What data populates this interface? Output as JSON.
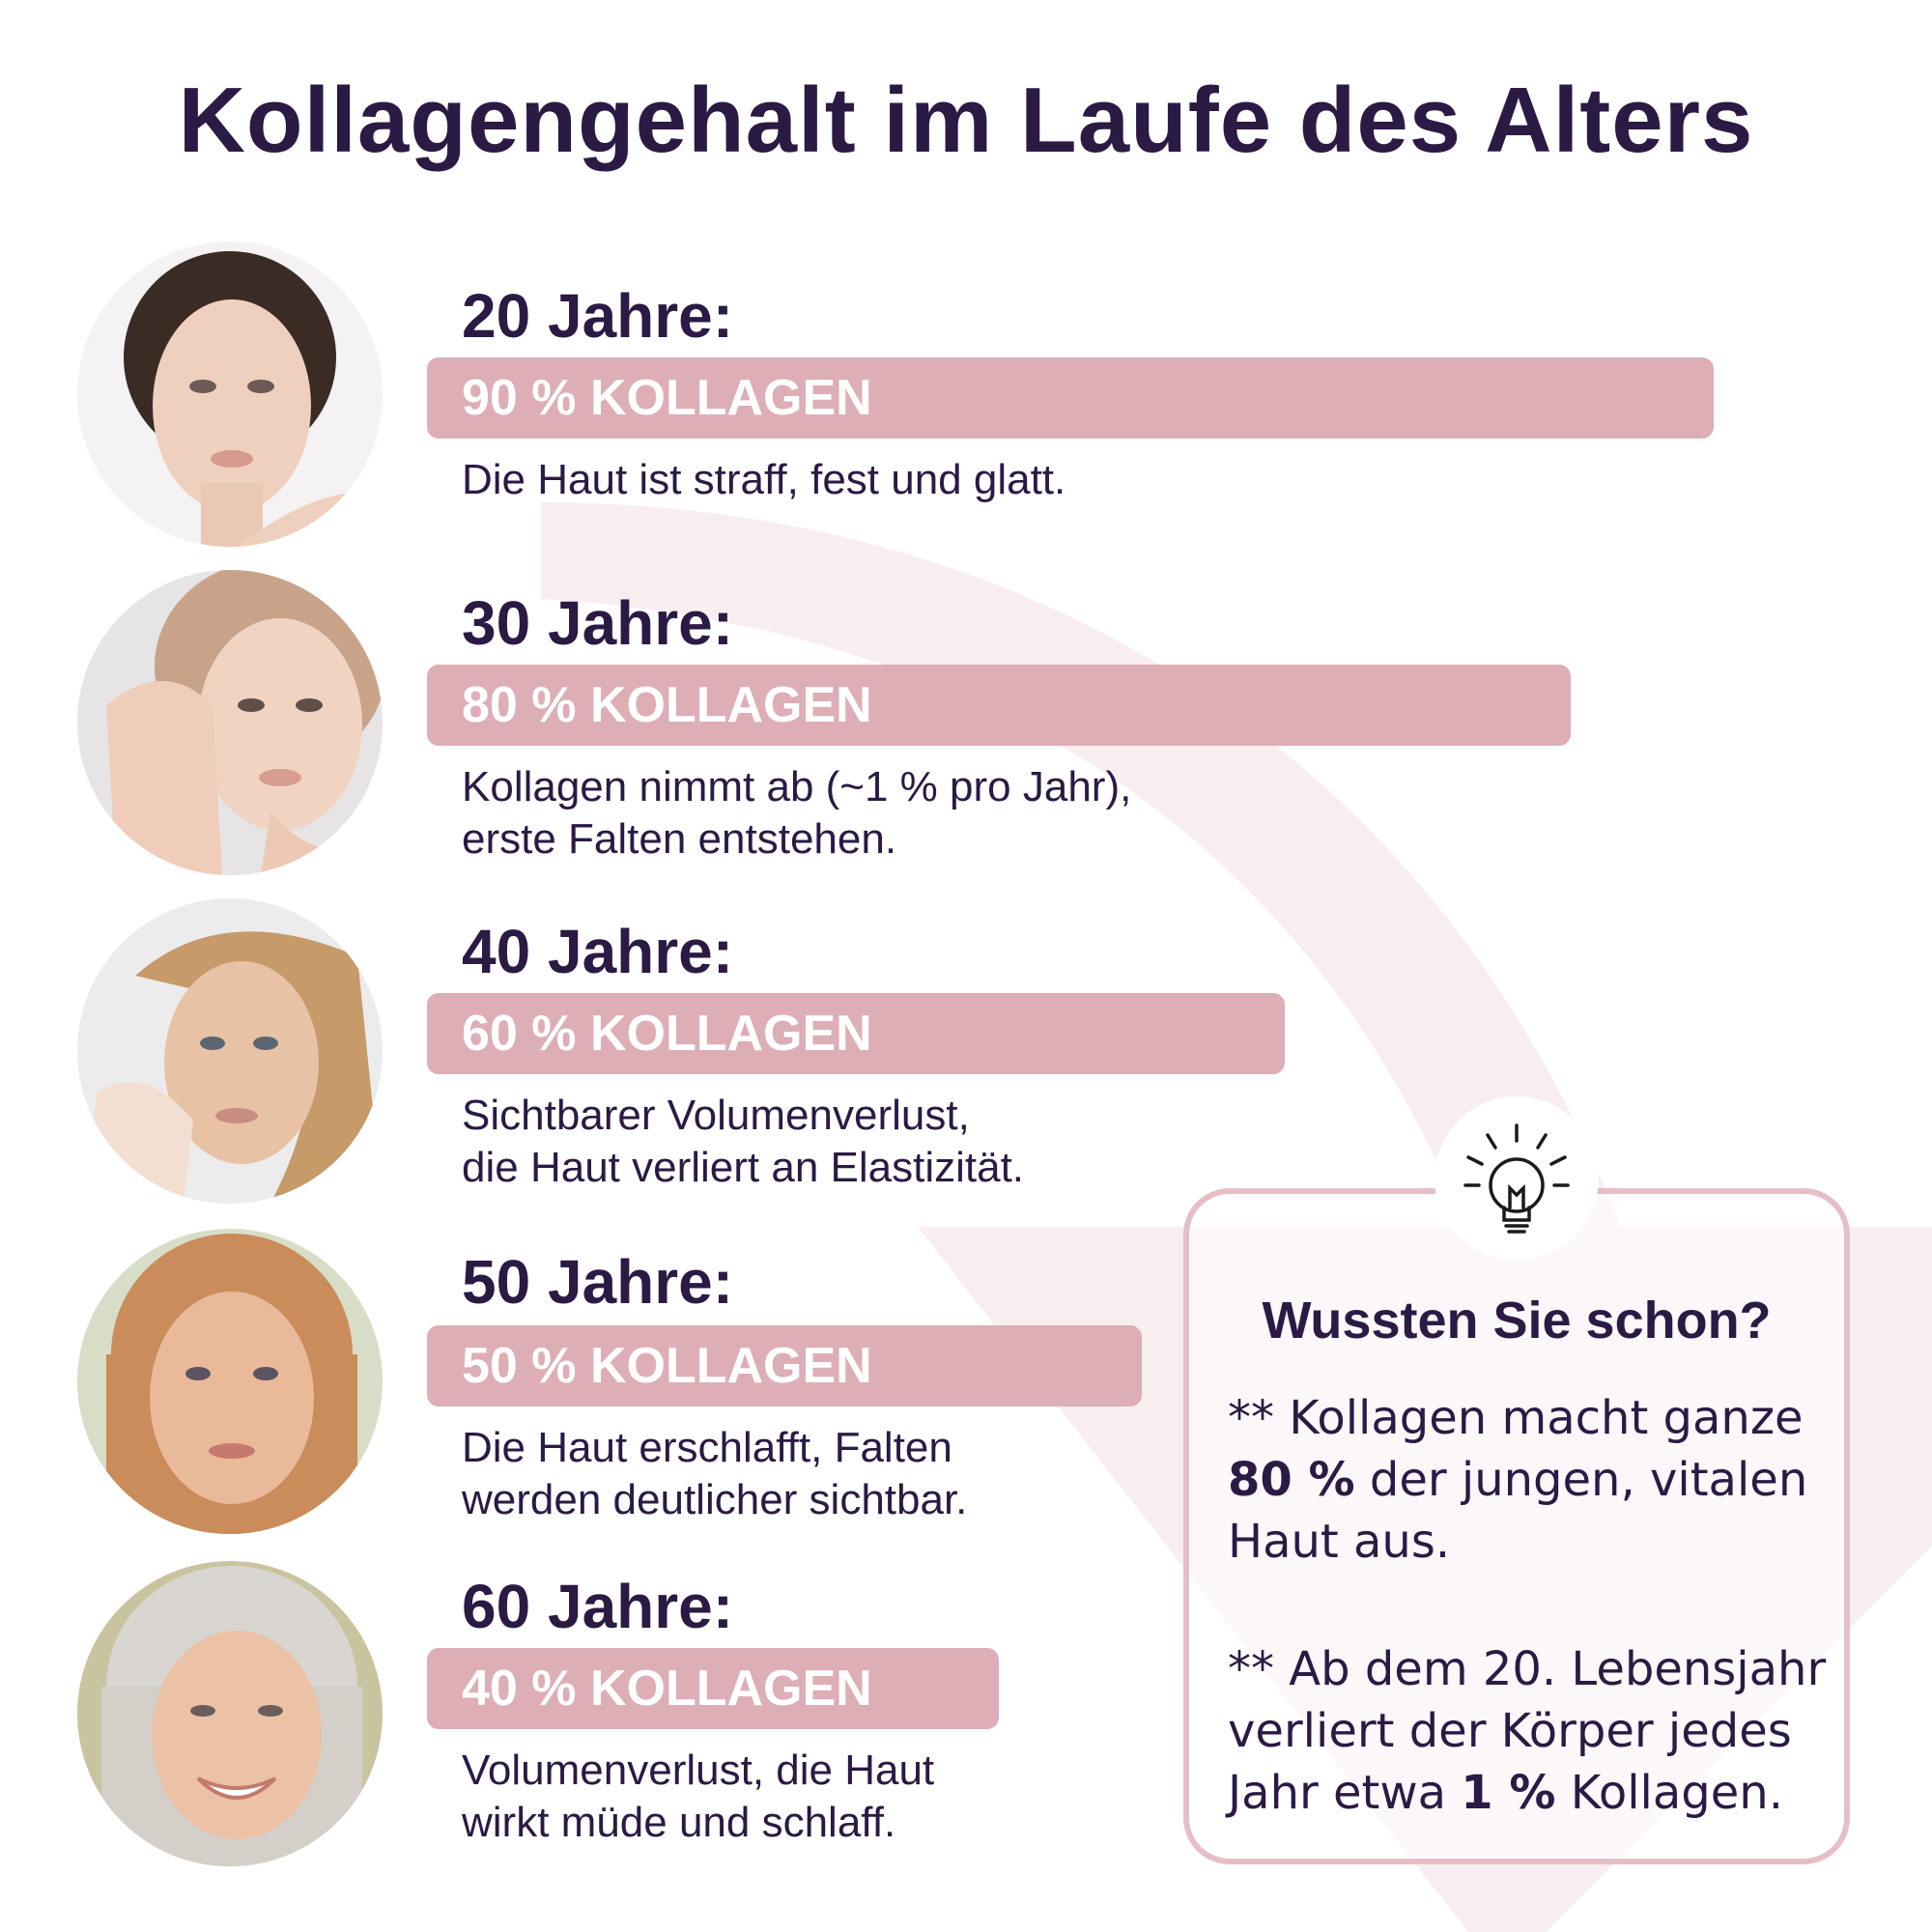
{
  "title": "Kollagengehalt im Laufe des Alters",
  "stages": [
    {
      "age": "20 Jahre:",
      "percent": 90,
      "bar_label": "90 % KOLLAGEN",
      "desc_line1": "Die Haut ist straff, fest und glatt.",
      "desc_line2": ""
    },
    {
      "age": "30 Jahre:",
      "percent": 80,
      "bar_label": "80 % KOLLAGEN",
      "desc_line1": "Kollagen nimmt ab (~1 % pro Jahr),",
      "desc_line2": "erste Falten entstehen."
    },
    {
      "age": "40 Jahre:",
      "percent": 60,
      "bar_label": "60 % KOLLAGEN",
      "desc_line1": "Sichtbarer Volumenverlust,",
      "desc_line2": "die Haut verliert an Elastizität."
    },
    {
      "age": "50 Jahre:",
      "percent": 50,
      "bar_label": "50 % KOLLAGEN",
      "desc_line1": "Die Haut erschlafft, Falten",
      "desc_line2": "werden deutlicher sichtbar."
    },
    {
      "age": "60 Jahre:",
      "percent": 40,
      "bar_label": "40 % KOLLAGEN",
      "desc_line1": "Volumenverlust, die Haut",
      "desc_line2": "wirkt müde und schlaff."
    }
  ],
  "info": {
    "icon": "lightbulb-icon",
    "title": "Wussten Sie schon?",
    "p1_prefix": "** Kollagen macht ganze",
    "p1_bold": "80 %",
    "p1_suffix": "der jungen, vitalen Haut aus.",
    "p2_prefix": "** Ab dem 20. Lebensjahr verliert der Körper jedes Jahr etwa",
    "p2_bold": "1 %",
    "p2_suffix": "Kollagen."
  },
  "colors": {
    "text": "#2b1a44",
    "bar": "#ddaeb6",
    "box_border": "#e6bfc6",
    "deco": "#f8eef0"
  }
}
